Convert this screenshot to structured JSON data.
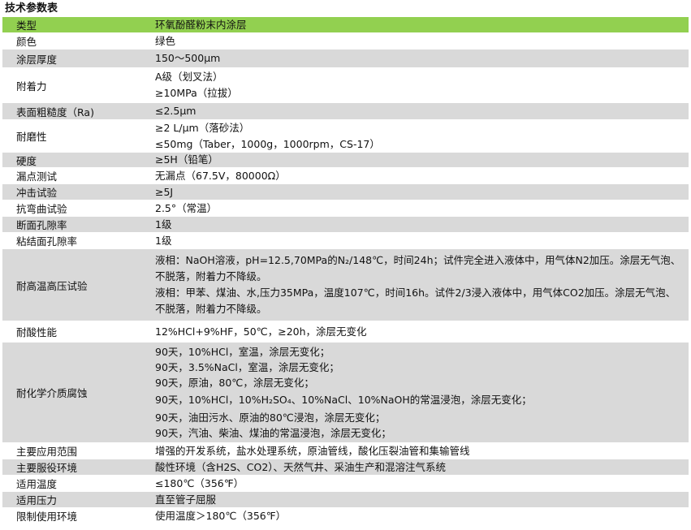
{
  "title": "技术参数表",
  "rows": [
    {
      "label": "类型",
      "values": [
        "环氧酚醛粉末内涂层"
      ]
    },
    {
      "label": "颜色",
      "values": [
        "绿色"
      ]
    },
    {
      "label": "涂层厚度",
      "values": [
        "150～500μm"
      ]
    },
    {
      "label": "附着力",
      "values": [
        "A级（划叉法）",
        "≥10MPa（拉拔）"
      ]
    },
    {
      "label": "表面粗糙度（Ra)",
      "values": [
        "≤2.5μm"
      ]
    },
    {
      "label": "耐磨性",
      "values": [
        "≥2 L/μm（落砂法）",
        "≤50mg（Taber，1000g，1000rpm，CS-17）"
      ]
    },
    {
      "label": "硬度",
      "values": [
        "≥5H（铅笔）"
      ]
    },
    {
      "label": "漏点测试",
      "values": [
        "无漏点（67.5V，80000Ω）"
      ]
    },
    {
      "label": "冲击试验",
      "values": [
        "≥5J"
      ]
    },
    {
      "label": "抗弯曲试验",
      "values": [
        "2.5°（常温）"
      ]
    },
    {
      "label": "断面孔隙率",
      "values": [
        "1级"
      ]
    },
    {
      "label": "粘结面孔隙率",
      "values": [
        "1级"
      ]
    },
    {
      "label": "耐高温高压试验",
      "values": [
        "液相：NaOH溶液，pH=12.5,70MPa的N₂/148℃，时间24h；试件完全进入液体中，用气体N2加压。涂层无气泡、不脱落，附着力不降级。",
        "液相：甲苯、煤油、水,压力35MPa，温度107℃，时间16h。试件2/3浸入液体中，用气体CO2加压。涂层无气泡、不脱落，附着力不降级。"
      ]
    },
    {
      "label": "耐酸性能",
      "values": [
        "12%HCl+9%HF，50℃，≥20h，涂层无变化"
      ]
    },
    {
      "label": "耐化学介质腐蚀",
      "values": [
        "90天，10%HCl，室温，涂层无变化；",
        "90天，3.5%NaCl，室温，涂层无变化；",
        "90天，原油，80℃，涂层无变化；",
        "90天，10%HCl，10%H₂SO₄、10%NaCl、10%NaOH的常温浸泡，涂层无变化；",
        "90天，油田污水、原油的80℃浸泡，涂层无变化；",
        "90天，汽油、柴油、煤油的常温浸泡，涂层无变化；"
      ]
    },
    {
      "label": "主要应用范围",
      "values": [
        "增强的开发系统，盐水处理系统，原油管线，酸化压裂油管和集输管线"
      ]
    },
    {
      "label": "主要服役环境",
      "values": [
        "酸性环境（含H2S、CO2）、天然气井、采油生产和混溶注气系统"
      ]
    },
    {
      "label": "适用温度",
      "values": [
        "≤180℃（356℉）"
      ]
    },
    {
      "label": "适用压力",
      "values": [
        "直至管子屈服"
      ]
    },
    {
      "label": "限制使用环境",
      "values": [
        "使用温度＞180℃（356℉）"
      ]
    }
  ],
  "colors": {
    "header": "#92d050",
    "stripe": "#d9d9d9"
  }
}
